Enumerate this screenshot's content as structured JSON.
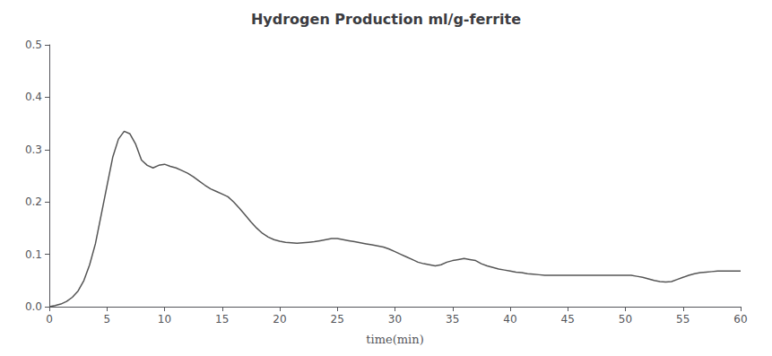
{
  "chart_data": {
    "type": "line",
    "title": "Hydrogen Production ml/g-ferrite",
    "xlabel": "time(min)",
    "color": "#555555",
    "grid": false,
    "xlim": [
      0,
      60
    ],
    "ylim": [
      0,
      0.5
    ],
    "xticks": [
      0,
      5,
      10,
      15,
      20,
      25,
      30,
      35,
      40,
      45,
      50,
      55,
      60
    ],
    "yticks": [
      {
        "value": 0,
        "label": "0.0"
      },
      0.1,
      0.2,
      0.3,
      0.4,
      0.5
    ],
    "x": [
      0,
      0.5,
      1.0,
      1.5,
      2.0,
      2.5,
      3.0,
      3.5,
      4.0,
      4.5,
      5.0,
      5.5,
      6.0,
      6.5,
      7.0,
      7.5,
      8.0,
      8.5,
      9.0,
      9.5,
      10.0,
      10.5,
      11.0,
      11.5,
      12.0,
      12.5,
      13.0,
      13.5,
      14.0,
      14.5,
      15.0,
      15.5,
      16.0,
      16.5,
      17.0,
      17.5,
      18.0,
      18.5,
      19.0,
      19.5,
      20.0,
      20.5,
      21.0,
      21.5,
      22.0,
      22.5,
      23.0,
      23.5,
      24.0,
      24.5,
      25.0,
      25.5,
      26.0,
      26.5,
      27.0,
      27.5,
      28.0,
      28.5,
      29.0,
      29.5,
      30.0,
      30.5,
      31.0,
      31.5,
      32.0,
      32.5,
      33.0,
      33.5,
      34.0,
      34.5,
      35.0,
      35.5,
      36.0,
      36.5,
      37.0,
      37.5,
      38.0,
      38.5,
      39.0,
      39.5,
      40.0,
      40.5,
      41.0,
      41.5,
      42.0,
      42.5,
      43.0,
      43.5,
      44.0,
      44.5,
      45.0,
      45.5,
      46.0,
      46.5,
      47.0,
      47.5,
      48.0,
      48.5,
      49.0,
      49.5,
      50.0,
      50.5,
      51.0,
      51.5,
      52.0,
      52.5,
      53.0,
      53.5,
      54.0,
      54.5,
      55.0,
      55.5,
      56.0,
      56.5,
      57.0,
      57.5,
      58.0,
      58.5,
      59.0,
      59.5,
      60.0
    ],
    "values": [
      0.0,
      0.002,
      0.005,
      0.01,
      0.018,
      0.03,
      0.05,
      0.08,
      0.12,
      0.175,
      0.23,
      0.285,
      0.32,
      0.335,
      0.33,
      0.31,
      0.28,
      0.27,
      0.265,
      0.27,
      0.272,
      0.268,
      0.265,
      0.26,
      0.255,
      0.248,
      0.24,
      0.232,
      0.225,
      0.22,
      0.215,
      0.21,
      0.2,
      0.188,
      0.175,
      0.162,
      0.15,
      0.14,
      0.133,
      0.128,
      0.125,
      0.123,
      0.122,
      0.121,
      0.122,
      0.123,
      0.124,
      0.126,
      0.128,
      0.13,
      0.13,
      0.128,
      0.126,
      0.124,
      0.122,
      0.12,
      0.118,
      0.116,
      0.114,
      0.11,
      0.105,
      0.1,
      0.095,
      0.09,
      0.085,
      0.082,
      0.08,
      0.078,
      0.08,
      0.085,
      0.088,
      0.09,
      0.092,
      0.09,
      0.088,
      0.082,
      0.078,
      0.075,
      0.072,
      0.07,
      0.068,
      0.066,
      0.065,
      0.063,
      0.062,
      0.061,
      0.06,
      0.06,
      0.06,
      0.06,
      0.06,
      0.06,
      0.06,
      0.06,
      0.06,
      0.06,
      0.06,
      0.06,
      0.06,
      0.06,
      0.06,
      0.06,
      0.058,
      0.056,
      0.053,
      0.05,
      0.048,
      0.047,
      0.048,
      0.052,
      0.056,
      0.06,
      0.063,
      0.065,
      0.066,
      0.067,
      0.068,
      0.068,
      0.068,
      0.068,
      0.068
    ]
  }
}
